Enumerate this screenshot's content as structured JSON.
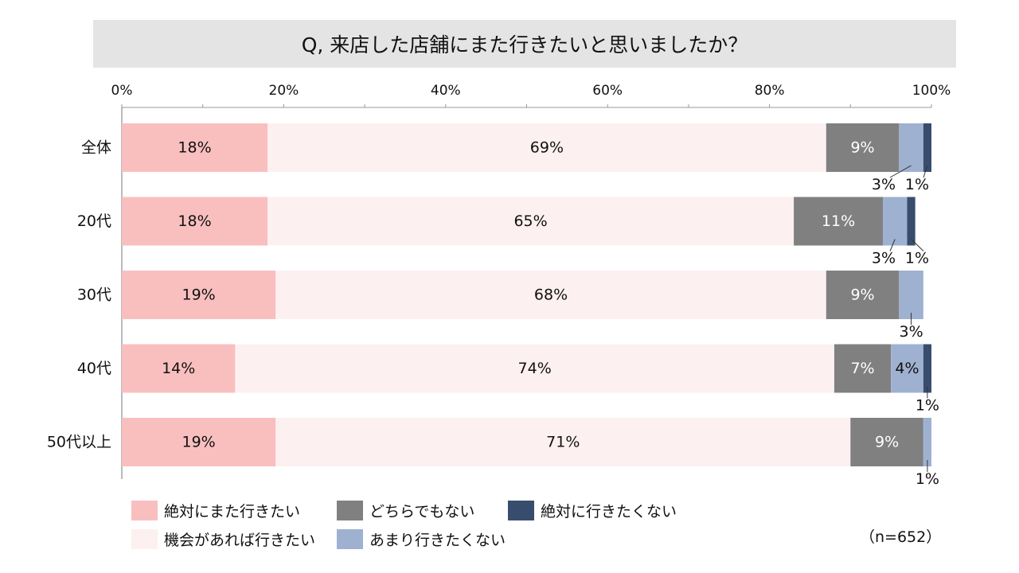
{
  "chart_data": {
    "type": "bar",
    "orientation": "horizontal",
    "stacked": true,
    "title": "Q, 来店した店舗にまた行きたいと思いましたか？",
    "categories": [
      "全体",
      "20代",
      "30代",
      "40代",
      "50代以上"
    ],
    "series": [
      {
        "name": "絶対にまた行きたい",
        "color": "#f9bfbf",
        "values": [
          18,
          18,
          19,
          14,
          19
        ],
        "labels": [
          "18%",
          "18%",
          "19%",
          "14%",
          "19%"
        ]
      },
      {
        "name": "機会があれば行きたい",
        "color": "#fdf0f0",
        "values": [
          69,
          65,
          68,
          74,
          71
        ],
        "labels": [
          "69%",
          "65%",
          "68%",
          "74%",
          "71%"
        ]
      },
      {
        "name": "どちらでもない",
        "color": "#808080",
        "values": [
          9,
          11,
          9,
          7,
          9
        ],
        "labels": [
          "9%",
          "11%",
          "9%",
          "7%",
          "9%"
        ]
      },
      {
        "name": "あまり行きたくない",
        "color": "#9fb1d0",
        "values": [
          3,
          3,
          3,
          4,
          1
        ],
        "labels": [
          "3%",
          "3%",
          "3%",
          "4%",
          "1%"
        ]
      },
      {
        "name": "絶対に行きたくない",
        "color": "#384d6e",
        "values": [
          1,
          1,
          0,
          1,
          0
        ],
        "labels": [
          "1%",
          "1%",
          "",
          "1%",
          ""
        ]
      }
    ],
    "xlim": [
      0,
      100
    ],
    "ticks": [
      "0%",
      "20%",
      "40%",
      "60%",
      "80%",
      "100%"
    ],
    "legend_position": "bottom",
    "note": "（n=652）"
  }
}
